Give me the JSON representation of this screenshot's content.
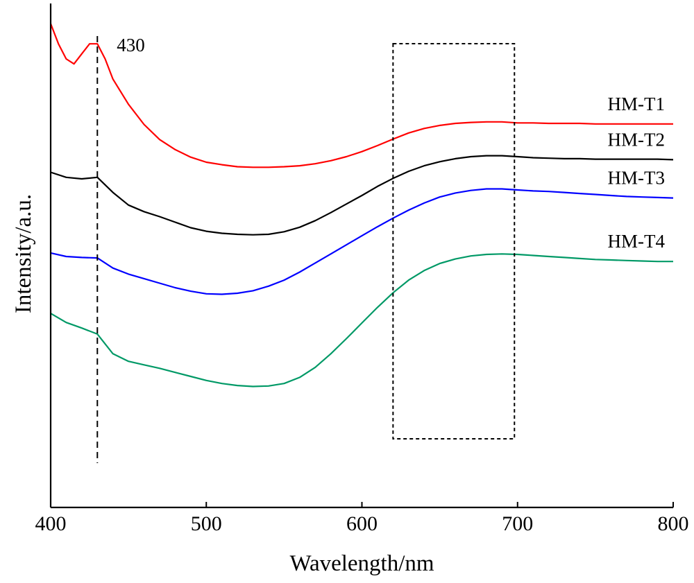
{
  "chart_data": {
    "type": "line",
    "xlabel": "Wavelength/nm",
    "ylabel": "Intensity/a.u.",
    "xlim": [
      400,
      800
    ],
    "xticks": [
      400,
      500,
      600,
      700,
      800
    ],
    "yticks_shown": false,
    "grid": false,
    "legend": "inline-right",
    "annotations": {
      "vline": {
        "x": 430,
        "label": "430",
        "style": "dashed"
      },
      "box": {
        "x_range": [
          620,
          698
        ],
        "style": "dashed"
      }
    },
    "series": [
      {
        "name": "HM-T1",
        "color": "#ff0000",
        "x": [
          400,
          405,
          410,
          415,
          420,
          425,
          430,
          435,
          440,
          450,
          460,
          470,
          480,
          490,
          500,
          510,
          520,
          530,
          540,
          550,
          560,
          570,
          580,
          590,
          600,
          610,
          620,
          630,
          640,
          650,
          660,
          670,
          680,
          690,
          700,
          710,
          720,
          730,
          740,
          750,
          760,
          770,
          780,
          790,
          800
        ],
        "y": [
          0.96,
          0.92,
          0.89,
          0.88,
          0.9,
          0.92,
          0.92,
          0.89,
          0.85,
          0.8,
          0.76,
          0.73,
          0.71,
          0.695,
          0.685,
          0.68,
          0.676,
          0.675,
          0.675,
          0.676,
          0.678,
          0.682,
          0.688,
          0.696,
          0.706,
          0.718,
          0.731,
          0.743,
          0.752,
          0.758,
          0.762,
          0.764,
          0.765,
          0.765,
          0.763,
          0.763,
          0.762,
          0.762,
          0.762,
          0.761,
          0.761,
          0.761,
          0.761,
          0.761,
          0.761
        ]
      },
      {
        "name": "HM-T2",
        "color": "#000000",
        "x": [
          400,
          410,
          420,
          430,
          440,
          450,
          460,
          470,
          480,
          490,
          500,
          510,
          520,
          530,
          540,
          550,
          560,
          570,
          580,
          590,
          600,
          610,
          620,
          630,
          640,
          650,
          660,
          670,
          680,
          690,
          700,
          710,
          720,
          730,
          740,
          750,
          760,
          770,
          780,
          790,
          800
        ],
        "y": [
          0.665,
          0.655,
          0.652,
          0.655,
          0.625,
          0.6,
          0.587,
          0.577,
          0.566,
          0.555,
          0.548,
          0.544,
          0.542,
          0.541,
          0.542,
          0.547,
          0.556,
          0.569,
          0.585,
          0.602,
          0.619,
          0.637,
          0.653,
          0.667,
          0.678,
          0.686,
          0.692,
          0.696,
          0.698,
          0.698,
          0.696,
          0.694,
          0.693,
          0.692,
          0.692,
          0.691,
          0.691,
          0.691,
          0.691,
          0.691,
          0.69
        ]
      },
      {
        "name": "HM-T3",
        "color": "#0000ff",
        "x": [
          400,
          410,
          420,
          430,
          440,
          450,
          460,
          470,
          480,
          490,
          500,
          510,
          520,
          530,
          540,
          550,
          560,
          570,
          580,
          590,
          600,
          610,
          620,
          630,
          640,
          650,
          660,
          670,
          680,
          690,
          700,
          710,
          720,
          730,
          740,
          750,
          760,
          770,
          780,
          790,
          800
        ],
        "y": [
          0.505,
          0.498,
          0.496,
          0.495,
          0.475,
          0.463,
          0.454,
          0.445,
          0.436,
          0.429,
          0.424,
          0.423,
          0.425,
          0.43,
          0.439,
          0.451,
          0.467,
          0.485,
          0.503,
          0.521,
          0.539,
          0.557,
          0.574,
          0.59,
          0.604,
          0.616,
          0.624,
          0.629,
          0.632,
          0.632,
          0.63,
          0.628,
          0.627,
          0.625,
          0.623,
          0.621,
          0.619,
          0.617,
          0.616,
          0.615,
          0.614
        ]
      },
      {
        "name": "HM-T4",
        "color": "#009966",
        "x": [
          400,
          410,
          420,
          430,
          440,
          450,
          460,
          470,
          480,
          490,
          500,
          510,
          520,
          530,
          540,
          550,
          560,
          570,
          580,
          590,
          600,
          610,
          620,
          630,
          640,
          650,
          660,
          670,
          680,
          690,
          700,
          710,
          720,
          730,
          740,
          750,
          760,
          770,
          780,
          790,
          800
        ],
        "y": [
          0.385,
          0.367,
          0.356,
          0.344,
          0.305,
          0.29,
          0.283,
          0.276,
          0.268,
          0.26,
          0.252,
          0.246,
          0.242,
          0.24,
          0.241,
          0.246,
          0.258,
          0.278,
          0.305,
          0.335,
          0.366,
          0.397,
          0.426,
          0.451,
          0.47,
          0.484,
          0.493,
          0.499,
          0.502,
          0.503,
          0.502,
          0.5,
          0.498,
          0.496,
          0.494,
          0.492,
          0.491,
          0.49,
          0.489,
          0.488,
          0.488
        ]
      }
    ]
  }
}
